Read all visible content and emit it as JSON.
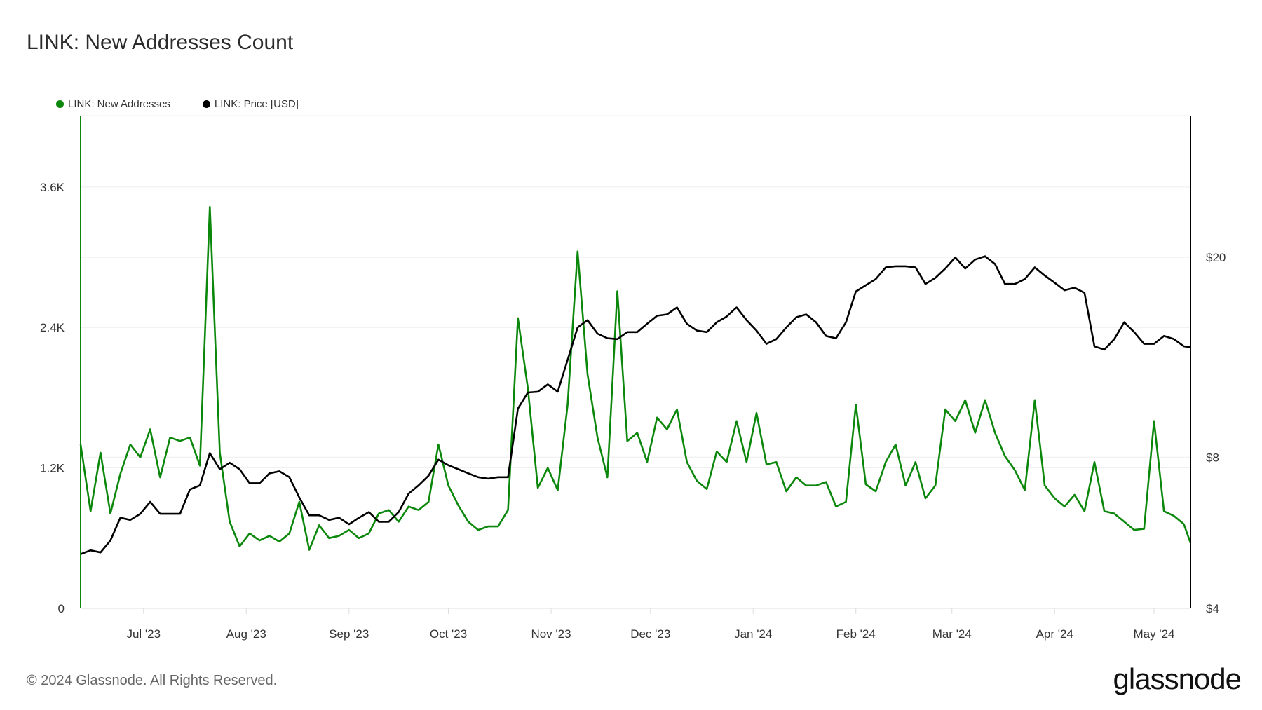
{
  "title": "LINK: New Addresses Count",
  "footer": "© 2024 Glassnode. All Rights Reserved.",
  "logo_text": "glassnode",
  "chart_data": {
    "type": "line",
    "title": "LINK: New Addresses Count",
    "start_date": "2023-06-12",
    "step_days": 3,
    "x_domain_days": [
      0,
      335
    ],
    "x_ticks": [
      {
        "label": "Jul '23",
        "day": 19
      },
      {
        "label": "Aug '23",
        "day": 50
      },
      {
        "label": "Sep '23",
        "day": 81
      },
      {
        "label": "Oct '23",
        "day": 111
      },
      {
        "label": "Nov '23",
        "day": 142
      },
      {
        "label": "Dec '23",
        "day": 172
      },
      {
        "label": "Jan '24",
        "day": 203
      },
      {
        "label": "Feb '24",
        "day": 234
      },
      {
        "label": "Mar '24",
        "day": 263
      },
      {
        "label": "Apr '24",
        "day": 294
      },
      {
        "label": "May '24",
        "day": 324
      }
    ],
    "y_left": {
      "scale": "linear",
      "ylim": [
        0,
        4210
      ],
      "ticks": [
        {
          "label": "0",
          "value": 0
        },
        {
          "label": "1.2K",
          "value": 1200
        },
        {
          "label": "2.4K",
          "value": 2400
        },
        {
          "label": "3.6K",
          "value": 3600
        }
      ]
    },
    "y_right": {
      "scale": "log",
      "ylim": [
        4,
        38.3
      ],
      "ticks": [
        {
          "label": "$4",
          "value": 4
        },
        {
          "label": "$8",
          "value": 8
        },
        {
          "label": "$20",
          "value": 20
        }
      ]
    },
    "grid": true,
    "legend_position": "top-left",
    "series": [
      {
        "name": "LINK: New Addresses",
        "axis": "left",
        "color": "#0b870b",
        "values": [
          1400,
          830,
          1330,
          810,
          1150,
          1400,
          1290,
          1530,
          1120,
          1460,
          1430,
          1460,
          1220,
          3430,
          1330,
          740,
          530,
          640,
          580,
          620,
          570,
          640,
          910,
          500,
          710,
          600,
          620,
          670,
          600,
          640,
          810,
          840,
          740,
          870,
          840,
          910,
          1400,
          1050,
          880,
          740,
          670,
          700,
          700,
          840,
          2480,
          1880,
          1030,
          1200,
          1010,
          1740,
          3050,
          2000,
          1460,
          1120,
          2710,
          1430,
          1500,
          1250,
          1630,
          1530,
          1700,
          1250,
          1090,
          1020,
          1340,
          1250,
          1600,
          1250,
          1670,
          1230,
          1250,
          1000,
          1120,
          1050,
          1050,
          1080,
          870,
          910,
          1740,
          1060,
          1000,
          1250,
          1400,
          1050,
          1250,
          940,
          1050,
          1700,
          1600,
          1780,
          1500,
          1780,
          1500,
          1300,
          1180,
          1010,
          1780,
          1050,
          940,
          870,
          970,
          830,
          1250,
          830,
          810,
          740,
          670,
          680,
          1600,
          830,
          790,
          720,
          560
        ]
      },
      {
        "name": "LINK: Price [USD]",
        "axis": "right",
        "color": "#000000",
        "values": [
          5.13,
          5.22,
          5.17,
          5.46,
          6.06,
          6.0,
          6.17,
          6.52,
          6.17,
          6.17,
          6.17,
          6.9,
          7.03,
          8.15,
          7.57,
          7.8,
          7.57,
          7.1,
          7.1,
          7.43,
          7.5,
          7.3,
          6.65,
          6.13,
          6.13,
          6.0,
          6.06,
          5.88,
          6.06,
          6.22,
          5.95,
          5.95,
          6.22,
          6.77,
          7.03,
          7.35,
          7.91,
          7.71,
          7.57,
          7.43,
          7.3,
          7.25,
          7.3,
          7.3,
          10.0,
          10.76,
          10.8,
          11.17,
          10.8,
          12.5,
          14.5,
          15.0,
          14.1,
          13.8,
          13.75,
          14.2,
          14.2,
          14.75,
          15.3,
          15.4,
          15.9,
          14.75,
          14.3,
          14.2,
          14.85,
          15.25,
          15.9,
          15.0,
          14.3,
          13.45,
          13.75,
          14.5,
          15.2,
          15.4,
          14.85,
          13.95,
          13.8,
          14.85,
          17.1,
          17.6,
          18.1,
          19.1,
          19.2,
          19.2,
          19.1,
          17.7,
          18.2,
          19.0,
          20.0,
          19.0,
          19.8,
          20.1,
          19.4,
          17.7,
          17.7,
          18.1,
          19.1,
          18.4,
          17.8,
          17.2,
          17.4,
          17.0,
          13.3,
          13.1,
          13.75,
          14.85,
          14.2,
          13.45,
          13.45,
          13.95,
          13.75,
          13.3,
          13.25
        ]
      }
    ]
  }
}
